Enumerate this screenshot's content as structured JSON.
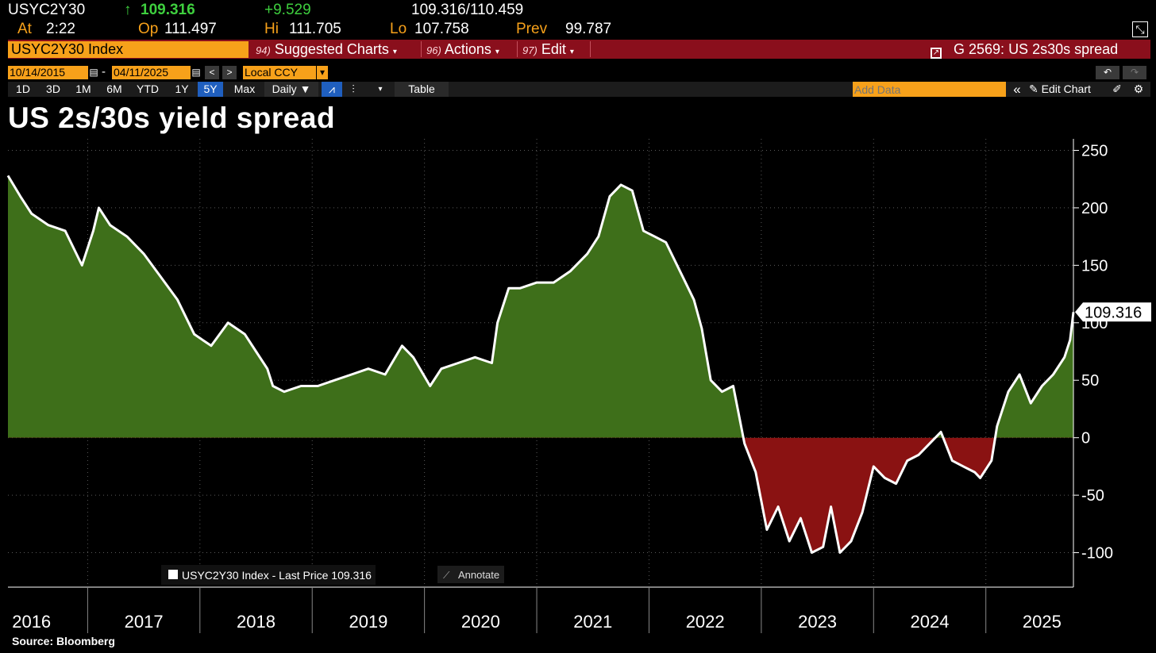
{
  "header": {
    "ticker": "USYC2Y30",
    "last_arrow": "↑",
    "last": "109.316",
    "change": "+9.529",
    "range": "109.316/110.459",
    "at_label": "At",
    "at_value": "2:22",
    "op_label": "Op",
    "op_value": "111.497",
    "hi_label": "Hi",
    "hi_value": "111.705",
    "lo_label": "Lo",
    "lo_value": "107.758",
    "prev_label": "Prev",
    "prev_value": "99.787"
  },
  "menu": {
    "security": "USYC2Y30 Index",
    "suggested_num": "94)",
    "suggested": "Suggested Charts",
    "actions_num": "96)",
    "actions": "Actions",
    "edit_num": "97)",
    "edit": "Edit",
    "chart_name": "G 2569: US 2s30s spread"
  },
  "range_bar": {
    "start_date": "10/14/2015",
    "dash": "-",
    "end_date": "04/11/2025",
    "currency": "Local CCY",
    "prev": "<",
    "next": ">"
  },
  "toolbar": {
    "periods": [
      "1D",
      "3D",
      "1M",
      "6M",
      "YTD",
      "1Y",
      "5Y",
      "Max"
    ],
    "active_period": "5Y",
    "frequency": "Daily ▼",
    "table": "Table",
    "add_data_placeholder": "Add Data",
    "edit_chart": "Edit Chart",
    "collapse": "«"
  },
  "colors": {
    "positive_fill": "#3e6f1a",
    "negative_fill": "#8a1212",
    "line": "#ffffff",
    "accent": "#f7a11a",
    "menu_bar": "#8a0f1c"
  },
  "chart_data": {
    "type": "area",
    "title": "US 2s/30s yield spread",
    "series": [
      {
        "name": "USYC2Y30 Index - Last Price 109.316",
        "x": [
          2015.79,
          2015.9,
          2016.0,
          2016.15,
          2016.3,
          2016.45,
          2016.55,
          2016.6,
          2016.7,
          2016.85,
          2017.0,
          2017.15,
          2017.3,
          2017.45,
          2017.6,
          2017.75,
          2017.9,
          2018.0,
          2018.1,
          2018.15,
          2018.25,
          2018.4,
          2018.55,
          2018.7,
          2018.85,
          2019.0,
          2019.15,
          2019.3,
          2019.4,
          2019.55,
          2019.65,
          2019.8,
          2019.95,
          2020.1,
          2020.15,
          2020.25,
          2020.35,
          2020.5,
          2020.65,
          2020.8,
          2020.95,
          2021.05,
          2021.15,
          2021.25,
          2021.35,
          2021.45,
          2021.55,
          2021.65,
          2021.8,
          2021.9,
          2021.97,
          2022.05,
          2022.15,
          2022.25,
          2022.35,
          2022.45,
          2022.55,
          2022.65,
          2022.75,
          2022.85,
          2022.95,
          2023.05,
          2023.12,
          2023.2,
          2023.3,
          2023.4,
          2023.5,
          2023.6,
          2023.7,
          2023.8,
          2023.9,
          2024.0,
          2024.1,
          2024.2,
          2024.3,
          2024.4,
          2024.45,
          2024.55,
          2024.6,
          2024.7,
          2024.8,
          2024.9,
          2025.0,
          2025.1,
          2025.2,
          2025.25,
          2025.28
        ],
        "values": [
          228,
          210,
          195,
          185,
          180,
          150,
          180,
          200,
          185,
          175,
          160,
          140,
          120,
          90,
          80,
          100,
          90,
          75,
          60,
          45,
          40,
          45,
          45,
          50,
          55,
          60,
          55,
          80,
          70,
          45,
          60,
          65,
          70,
          65,
          100,
          130,
          130,
          135,
          135,
          145,
          160,
          175,
          210,
          220,
          215,
          180,
          175,
          170,
          140,
          120,
          95,
          50,
          40,
          45,
          -5,
          -30,
          -80,
          -60,
          -90,
          -70,
          -100,
          -95,
          -60,
          -100,
          -90,
          -65,
          -25,
          -35,
          -40,
          -20,
          -15,
          -5,
          5,
          -20,
          -25,
          -30,
          -35,
          -20,
          10,
          40,
          55,
          30,
          45,
          55,
          70,
          85,
          109.316
        ]
      }
    ],
    "xlabel": "",
    "ylabel": "",
    "x_ticks": [
      2016,
      2017,
      2018,
      2019,
      2020,
      2021,
      2022,
      2023,
      2024,
      2025
    ],
    "y_ticks": [
      -100,
      -50,
      0,
      50,
      100,
      150,
      200,
      250
    ],
    "xlim": [
      2015.79,
      2025.28
    ],
    "ylim": [
      -130,
      260
    ],
    "last_value_label": "109.316",
    "legend": "USYC2Y30 Index - Last Price 109.316",
    "annotate": "Annotate",
    "grid": true,
    "legend_position": "bottom-left"
  },
  "footer": {
    "source": "Source: Bloomberg"
  }
}
